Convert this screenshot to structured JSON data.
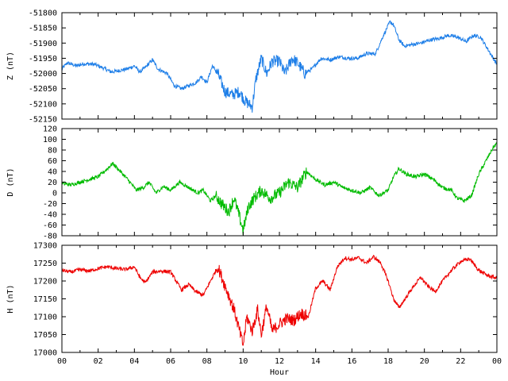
{
  "chart_data": [
    {
      "type": "line",
      "ylabel": "Z (nT)",
      "ylim": [
        -52150,
        -51800
      ],
      "yticks": [
        -52150,
        -52100,
        -52050,
        -52000,
        -51950,
        -51900,
        -51850,
        -51800
      ],
      "color": "#1f7fe8",
      "x_range": [
        0,
        24
      ],
      "points": [
        [
          0,
          -51985
        ],
        [
          0.3,
          -51965
        ],
        [
          0.8,
          -51975
        ],
        [
          1.2,
          -51968
        ],
        [
          1.8,
          -51970
        ],
        [
          2.4,
          -51985
        ],
        [
          2.7,
          -51995
        ],
        [
          3.2,
          -51990
        ],
        [
          3.6,
          -51985
        ],
        [
          4.0,
          -51975
        ],
        [
          4.3,
          -51995
        ],
        [
          4.6,
          -51980
        ],
        [
          5.0,
          -51955
        ],
        [
          5.3,
          -51985
        ],
        [
          5.8,
          -52000
        ],
        [
          6.2,
          -52040
        ],
        [
          6.6,
          -52050
        ],
        [
          7.0,
          -52040
        ],
        [
          7.4,
          -52030
        ],
        [
          7.7,
          -52010
        ],
        [
          8.0,
          -52030
        ],
        [
          8.3,
          -51975
        ],
        [
          8.6,
          -52000
        ],
        [
          9.0,
          -52060
        ],
        [
          9.4,
          -52070
        ],
        [
          9.8,
          -52060
        ],
        [
          10.1,
          -52090
        ],
        [
          10.5,
          -52110
        ],
        [
          10.7,
          -52020
        ],
        [
          11.0,
          -51950
        ],
        [
          11.3,
          -52000
        ],
        [
          11.6,
          -51960
        ],
        [
          12.0,
          -51960
        ],
        [
          12.3,
          -52000
        ],
        [
          12.7,
          -51950
        ],
        [
          13.0,
          -51965
        ],
        [
          13.4,
          -52000
        ],
        [
          13.8,
          -51985
        ],
        [
          14.3,
          -51950
        ],
        [
          14.8,
          -51955
        ],
        [
          15.3,
          -51945
        ],
        [
          15.8,
          -51950
        ],
        [
          16.3,
          -51950
        ],
        [
          16.8,
          -51935
        ],
        [
          17.3,
          -51935
        ],
        [
          17.7,
          -51880
        ],
        [
          18.1,
          -51830
        ],
        [
          18.3,
          -51840
        ],
        [
          18.6,
          -51890
        ],
        [
          18.9,
          -51910
        ],
        [
          19.3,
          -51905
        ],
        [
          19.8,
          -51900
        ],
        [
          20.3,
          -51890
        ],
        [
          20.8,
          -51885
        ],
        [
          21.3,
          -51875
        ],
        [
          21.8,
          -51880
        ],
        [
          22.3,
          -51895
        ],
        [
          22.7,
          -51875
        ],
        [
          23.1,
          -51880
        ],
        [
          23.5,
          -51920
        ],
        [
          23.8,
          -51950
        ],
        [
          24.0,
          -51970
        ]
      ]
    },
    {
      "type": "line",
      "ylabel": "D (nT)",
      "ylim": [
        -80,
        120
      ],
      "yticks": [
        -80,
        -60,
        -40,
        -20,
        0,
        20,
        40,
        60,
        80,
        100,
        120
      ],
      "color": "#00bb00",
      "x_range": [
        0,
        24
      ],
      "points": [
        [
          0,
          18
        ],
        [
          0.5,
          15
        ],
        [
          1.0,
          20
        ],
        [
          1.5,
          25
        ],
        [
          2.0,
          30
        ],
        [
          2.5,
          45
        ],
        [
          2.8,
          55
        ],
        [
          3.0,
          48
        ],
        [
          3.5,
          30
        ],
        [
          3.8,
          18
        ],
        [
          4.1,
          5
        ],
        [
          4.5,
          10
        ],
        [
          4.8,
          20
        ],
        [
          5.2,
          0
        ],
        [
          5.6,
          12
        ],
        [
          6.0,
          5
        ],
        [
          6.5,
          20
        ],
        [
          7.0,
          10
        ],
        [
          7.5,
          0
        ],
        [
          7.8,
          5
        ],
        [
          8.2,
          -15
        ],
        [
          8.5,
          -5
        ],
        [
          8.8,
          -20
        ],
        [
          9.2,
          -35
        ],
        [
          9.5,
          -10
        ],
        [
          9.8,
          -45
        ],
        [
          10.0,
          -70
        ],
        [
          10.3,
          -25
        ],
        [
          10.6,
          -10
        ],
        [
          11.0,
          5
        ],
        [
          11.5,
          -10
        ],
        [
          12.0,
          0
        ],
        [
          12.5,
          20
        ],
        [
          13.0,
          10
        ],
        [
          13.5,
          40
        ],
        [
          14.0,
          25
        ],
        [
          14.5,
          15
        ],
        [
          15.0,
          20
        ],
        [
          15.5,
          10
        ],
        [
          16.0,
          5
        ],
        [
          16.5,
          0
        ],
        [
          17.0,
          10
        ],
        [
          17.5,
          -5
        ],
        [
          18.0,
          5
        ],
        [
          18.3,
          30
        ],
        [
          18.6,
          45
        ],
        [
          19.0,
          35
        ],
        [
          19.5,
          30
        ],
        [
          20.0,
          35
        ],
        [
          20.5,
          25
        ],
        [
          21.0,
          10
        ],
        [
          21.5,
          5
        ],
        [
          21.8,
          -10
        ],
        [
          22.2,
          -15
        ],
        [
          22.6,
          -5
        ],
        [
          23.0,
          35
        ],
        [
          23.4,
          60
        ],
        [
          23.8,
          85
        ],
        [
          24.0,
          92
        ]
      ]
    },
    {
      "type": "line",
      "ylabel": "H (nT)",
      "ylim": [
        17000,
        17300
      ],
      "yticks": [
        17000,
        17050,
        17100,
        17150,
        17200,
        17250,
        17300
      ],
      "color": "#ee0000",
      "xlabel": "Hour",
      "xticks": [
        "00",
        "02",
        "04",
        "06",
        "08",
        "10",
        "12",
        "14",
        "16",
        "18",
        "20",
        "22",
        "00"
      ],
      "x_range": [
        0,
        24
      ],
      "points": [
        [
          0,
          17230
        ],
        [
          0.5,
          17225
        ],
        [
          1.0,
          17232
        ],
        [
          1.5,
          17228
        ],
        [
          2.0,
          17235
        ],
        [
          2.5,
          17240
        ],
        [
          3.0,
          17235
        ],
        [
          3.5,
          17232
        ],
        [
          4.0,
          17240
        ],
        [
          4.3,
          17210
        ],
        [
          4.6,
          17195
        ],
        [
          5.0,
          17225
        ],
        [
          5.5,
          17228
        ],
        [
          6.0,
          17225
        ],
        [
          6.3,
          17200
        ],
        [
          6.6,
          17175
        ],
        [
          7.0,
          17190
        ],
        [
          7.4,
          17170
        ],
        [
          7.8,
          17160
        ],
        [
          8.2,
          17200
        ],
        [
          8.6,
          17240
        ],
        [
          8.9,
          17200
        ],
        [
          9.2,
          17160
        ],
        [
          9.5,
          17120
        ],
        [
          9.8,
          17060
        ],
        [
          10.0,
          17020
        ],
        [
          10.2,
          17100
        ],
        [
          10.5,
          17060
        ],
        [
          10.8,
          17120
        ],
        [
          11.0,
          17050
        ],
        [
          11.3,
          17130
        ],
        [
          11.6,
          17060
        ],
        [
          12.0,
          17080
        ],
        [
          12.4,
          17095
        ],
        [
          12.8,
          17090
        ],
        [
          13.2,
          17110
        ],
        [
          13.6,
          17100
        ],
        [
          14.0,
          17180
        ],
        [
          14.4,
          17200
        ],
        [
          14.8,
          17175
        ],
        [
          15.2,
          17240
        ],
        [
          15.6,
          17265
        ],
        [
          16.0,
          17260
        ],
        [
          16.4,
          17265
        ],
        [
          16.8,
          17250
        ],
        [
          17.2,
          17268
        ],
        [
          17.6,
          17250
        ],
        [
          18.0,
          17200
        ],
        [
          18.3,
          17150
        ],
        [
          18.6,
          17125
        ],
        [
          19.0,
          17155
        ],
        [
          19.4,
          17185
        ],
        [
          19.8,
          17210
        ],
        [
          20.2,
          17185
        ],
        [
          20.6,
          17170
        ],
        [
          21.0,
          17200
        ],
        [
          21.5,
          17230
        ],
        [
          22.0,
          17255
        ],
        [
          22.5,
          17262
        ],
        [
          23.0,
          17230
        ],
        [
          23.5,
          17215
        ],
        [
          24.0,
          17208
        ]
      ]
    }
  ]
}
